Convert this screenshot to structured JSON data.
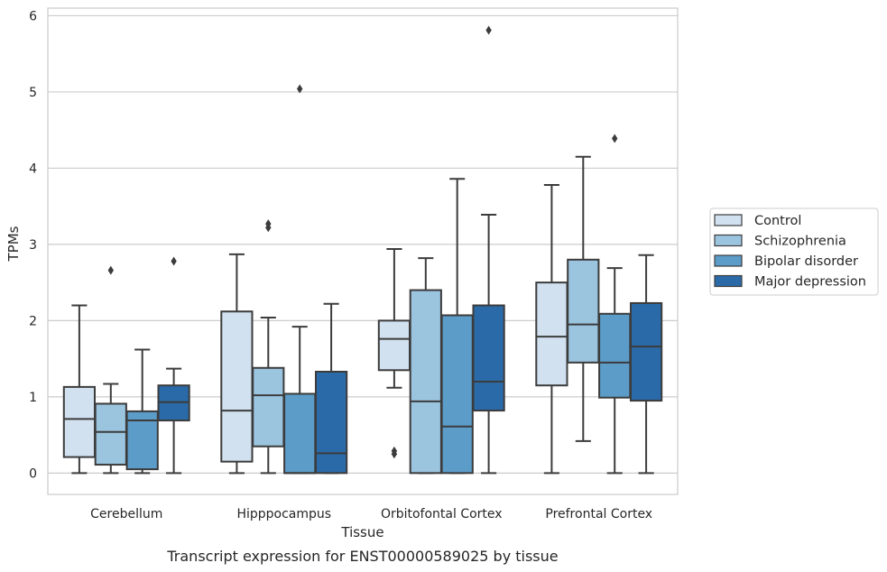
{
  "chart_data": {
    "type": "box",
    "title": "",
    "caption": "Transcript expression for ENST00000589025 by tissue",
    "xlabel": "Tissue",
    "ylabel": "TPMs",
    "ylim": [
      -0.28,
      6.1
    ],
    "yticks": [
      "0",
      "1",
      "2",
      "3",
      "4",
      "5",
      "6"
    ],
    "grid": "horizontal",
    "legend_position": "right",
    "categories": [
      "Cerebellum",
      "Hipppocampus",
      "Orbitofontal Cortex",
      "Prefrontal Cortex"
    ],
    "series": [
      {
        "name": "Control",
        "color": "#d1e1f0",
        "boxes": [
          {
            "whisker_low": 0.0,
            "q1": 0.21,
            "median": 0.71,
            "q3": 1.13,
            "whisker_high": 2.2,
            "outliers": []
          },
          {
            "whisker_low": 0.0,
            "q1": 0.15,
            "median": 0.82,
            "q3": 2.12,
            "whisker_high": 2.87,
            "outliers": []
          },
          {
            "whisker_low": 1.12,
            "q1": 1.35,
            "median": 1.76,
            "q3": 2.0,
            "whisker_high": 2.94,
            "outliers": [
              0.25,
              0.29
            ]
          },
          {
            "whisker_low": 0.0,
            "q1": 1.15,
            "median": 1.79,
            "q3": 2.5,
            "whisker_high": 3.78,
            "outliers": []
          }
        ]
      },
      {
        "name": "Schizophrenia",
        "color": "#9bc4df",
        "boxes": [
          {
            "whisker_low": 0.0,
            "q1": 0.11,
            "median": 0.54,
            "q3": 0.91,
            "whisker_high": 1.17,
            "outliers": [
              2.66
            ]
          },
          {
            "whisker_low": 0.0,
            "q1": 0.35,
            "median": 1.02,
            "q3": 1.38,
            "whisker_high": 2.04,
            "outliers": [
              3.22,
              3.27
            ]
          },
          {
            "whisker_low": 0.0,
            "q1": 0.0,
            "median": 0.94,
            "q3": 2.4,
            "whisker_high": 2.82,
            "outliers": []
          },
          {
            "whisker_low": 0.42,
            "q1": 1.45,
            "median": 1.95,
            "q3": 2.8,
            "whisker_high": 4.15,
            "outliers": []
          }
        ]
      },
      {
        "name": "Bipolar disorder",
        "color": "#5c9cc9",
        "boxes": [
          {
            "whisker_low": 0.0,
            "q1": 0.05,
            "median": 0.69,
            "q3": 0.81,
            "whisker_high": 1.62,
            "outliers": []
          },
          {
            "whisker_low": 0.0,
            "q1": 0.0,
            "median": 0.0,
            "q3": 1.04,
            "whisker_high": 1.92,
            "outliers": [
              5.04
            ]
          },
          {
            "whisker_low": 0.0,
            "q1": 0.0,
            "median": 0.61,
            "q3": 2.07,
            "whisker_high": 3.86,
            "outliers": []
          },
          {
            "whisker_low": 0.0,
            "q1": 0.99,
            "median": 1.45,
            "q3": 2.09,
            "whisker_high": 2.69,
            "outliers": [
              4.39
            ]
          }
        ]
      },
      {
        "name": "Major depression",
        "color": "#2a6aa8",
        "boxes": [
          {
            "whisker_low": 0.0,
            "q1": 0.69,
            "median": 0.93,
            "q3": 1.15,
            "whisker_high": 1.37,
            "outliers": [
              2.78
            ]
          },
          {
            "whisker_low": 0.0,
            "q1": 0.0,
            "median": 0.26,
            "q3": 1.33,
            "whisker_high": 2.22,
            "outliers": []
          },
          {
            "whisker_low": 0.0,
            "q1": 0.82,
            "median": 1.2,
            "q3": 2.2,
            "whisker_high": 3.39,
            "outliers": [
              5.81
            ]
          },
          {
            "whisker_low": 0.0,
            "q1": 0.95,
            "median": 1.66,
            "q3": 2.23,
            "whisker_high": 2.86,
            "outliers": []
          }
        ]
      }
    ]
  }
}
